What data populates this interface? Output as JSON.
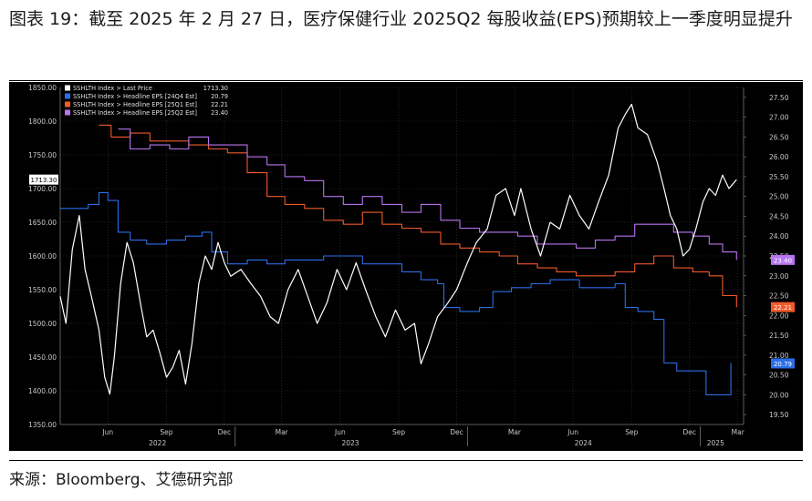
{
  "header": {
    "title": "图表 19：截至 2025 年 2 月 27 日，医疗保健行业 2025Q2 每股收益(EPS)预期较上一季度明显提升"
  },
  "footer": {
    "source": "来源：Bloomberg、艾德研究部"
  },
  "colors": {
    "background": "#000000",
    "price": "#ffffff",
    "eps_24q4": "#2b6ee8",
    "eps_25q1": "#f05a28",
    "eps_25q2": "#b874f0"
  },
  "chart_data": {
    "type": "line",
    "title": "",
    "grid": true,
    "legend": "top-left",
    "left_axis": {
      "range": [
        1350,
        1850
      ],
      "ticks": [
        "1850.00",
        "1800.00",
        "1750.00",
        "1700.00",
        "1650.00",
        "1600.00",
        "1550.00",
        "1500.00",
        "1450.00",
        "1400.00",
        "1350.00"
      ]
    },
    "right_axis": {
      "range": [
        19.25,
        27.75
      ],
      "ticks": [
        "27.50",
        "27.00",
        "26.50",
        "26.00",
        "25.50",
        "25.00",
        "24.50",
        "24.00",
        "23.50",
        "23.00",
        "22.50",
        "22.00",
        "21.50",
        "21.00",
        "20.50",
        "20.00",
        "19.50"
      ]
    },
    "x_axis": {
      "range": [
        "2022-04-01",
        "2025-03-10"
      ],
      "months": [
        {
          "label": "Jun",
          "date": "2022-06-15"
        },
        {
          "label": "Sep",
          "date": "2022-09-15"
        },
        {
          "label": "Dec",
          "date": "2022-12-15"
        },
        {
          "label": "Mar",
          "date": "2023-03-15"
        },
        {
          "label": "Jun",
          "date": "2023-06-15"
        },
        {
          "label": "Sep",
          "date": "2023-09-15"
        },
        {
          "label": "Dec",
          "date": "2023-12-15"
        },
        {
          "label": "Mar",
          "date": "2024-03-15"
        },
        {
          "label": "Jun",
          "date": "2024-06-15"
        },
        {
          "label": "Sep",
          "date": "2024-09-15"
        },
        {
          "label": "Dec",
          "date": "2024-12-15"
        },
        {
          "label": "Mar",
          "date": "2025-03-01"
        }
      ],
      "years": [
        {
          "label": "2022",
          "date": "2022-09-01"
        },
        {
          "label": "2023",
          "date": "2023-07-01"
        },
        {
          "label": "2024",
          "date": "2024-07-01"
        },
        {
          "label": "2025",
          "date": "2025-01-25"
        }
      ],
      "year_separators": [
        "2023-01-01",
        "2024-01-01",
        "2025-01-01"
      ]
    },
    "series": [
      {
        "name": "SSHLTH Index > Last Price",
        "last": "1713.30",
        "axis": "left",
        "color": "#ffffff",
        "points": [
          [
            "2022-04-01",
            1540
          ],
          [
            "2022-04-10",
            1500
          ],
          [
            "2022-04-20",
            1610
          ],
          [
            "2022-05-01",
            1660
          ],
          [
            "2022-05-10",
            1580
          ],
          [
            "2022-05-20",
            1540
          ],
          [
            "2022-06-01",
            1490
          ],
          [
            "2022-06-10",
            1420
          ],
          [
            "2022-06-18",
            1395
          ],
          [
            "2022-06-25",
            1450
          ],
          [
            "2022-07-05",
            1560
          ],
          [
            "2022-07-15",
            1620
          ],
          [
            "2022-07-25",
            1590
          ],
          [
            "2022-08-05",
            1530
          ],
          [
            "2022-08-15",
            1480
          ],
          [
            "2022-08-25",
            1490
          ],
          [
            "2022-09-05",
            1455
          ],
          [
            "2022-09-15",
            1420
          ],
          [
            "2022-09-25",
            1435
          ],
          [
            "2022-10-05",
            1460
          ],
          [
            "2022-10-15",
            1410
          ],
          [
            "2022-10-25",
            1470
          ],
          [
            "2022-11-05",
            1560
          ],
          [
            "2022-11-15",
            1600
          ],
          [
            "2022-11-25",
            1580
          ],
          [
            "2022-12-05",
            1620
          ],
          [
            "2022-12-15",
            1590
          ],
          [
            "2022-12-25",
            1570
          ],
          [
            "2023-01-10",
            1580
          ],
          [
            "2023-01-25",
            1560
          ],
          [
            "2023-02-10",
            1540
          ],
          [
            "2023-02-25",
            1510
          ],
          [
            "2023-03-10",
            1500
          ],
          [
            "2023-03-25",
            1550
          ],
          [
            "2023-04-10",
            1580
          ],
          [
            "2023-04-25",
            1540
          ],
          [
            "2023-05-10",
            1500
          ],
          [
            "2023-05-25",
            1530
          ],
          [
            "2023-06-10",
            1580
          ],
          [
            "2023-06-25",
            1550
          ],
          [
            "2023-07-10",
            1590
          ],
          [
            "2023-07-25",
            1550
          ],
          [
            "2023-08-10",
            1510
          ],
          [
            "2023-08-25",
            1480
          ],
          [
            "2023-09-10",
            1520
          ],
          [
            "2023-09-25",
            1490
          ],
          [
            "2023-10-10",
            1500
          ],
          [
            "2023-10-20",
            1440
          ],
          [
            "2023-11-01",
            1470
          ],
          [
            "2023-11-15",
            1510
          ],
          [
            "2023-12-01",
            1530
          ],
          [
            "2023-12-15",
            1550
          ],
          [
            "2024-01-01",
            1590
          ],
          [
            "2024-01-15",
            1620
          ],
          [
            "2024-02-01",
            1640
          ],
          [
            "2024-02-15",
            1690
          ],
          [
            "2024-03-01",
            1700
          ],
          [
            "2024-03-15",
            1660
          ],
          [
            "2024-03-25",
            1700
          ],
          [
            "2024-04-10",
            1640
          ],
          [
            "2024-04-25",
            1600
          ],
          [
            "2024-05-10",
            1650
          ],
          [
            "2024-05-25",
            1640
          ],
          [
            "2024-06-10",
            1690
          ],
          [
            "2024-06-25",
            1660
          ],
          [
            "2024-07-10",
            1640
          ],
          [
            "2024-07-25",
            1680
          ],
          [
            "2024-08-10",
            1720
          ],
          [
            "2024-08-25",
            1790
          ],
          [
            "2024-09-05",
            1810
          ],
          [
            "2024-09-15",
            1825
          ],
          [
            "2024-09-25",
            1790
          ],
          [
            "2024-10-10",
            1780
          ],
          [
            "2024-10-25",
            1740
          ],
          [
            "2024-11-05",
            1700
          ],
          [
            "2024-11-15",
            1660
          ],
          [
            "2024-11-25",
            1640
          ],
          [
            "2024-12-05",
            1600
          ],
          [
            "2024-12-15",
            1610
          ],
          [
            "2024-12-25",
            1640
          ],
          [
            "2025-01-05",
            1680
          ],
          [
            "2025-01-15",
            1700
          ],
          [
            "2025-01-25",
            1690
          ],
          [
            "2025-02-05",
            1720
          ],
          [
            "2025-02-15",
            1700
          ],
          [
            "2025-02-27",
            1713.3
          ]
        ]
      },
      {
        "name": "SSHLTH Index > Headline EPS [24Q4 Est]",
        "last": "20.79",
        "axis": "right",
        "color": "#2b6ee8",
        "points": [
          [
            "2022-04-01",
            24.7
          ],
          [
            "2022-05-15",
            24.8
          ],
          [
            "2022-06-01",
            25.1
          ],
          [
            "2022-06-15",
            24.9
          ],
          [
            "2022-07-01",
            24.1
          ],
          [
            "2022-07-20",
            23.9
          ],
          [
            "2022-08-15",
            23.8
          ],
          [
            "2022-09-15",
            23.9
          ],
          [
            "2022-10-15",
            24.0
          ],
          [
            "2022-11-10",
            24.1
          ],
          [
            "2022-11-25",
            23.6
          ],
          [
            "2022-12-20",
            23.3
          ],
          [
            "2023-01-20",
            23.4
          ],
          [
            "2023-02-20",
            23.3
          ],
          [
            "2023-03-20",
            23.4
          ],
          [
            "2023-04-20",
            23.4
          ],
          [
            "2023-05-20",
            23.5
          ],
          [
            "2023-06-20",
            23.5
          ],
          [
            "2023-07-20",
            23.3
          ],
          [
            "2023-08-20",
            23.3
          ],
          [
            "2023-09-20",
            23.1
          ],
          [
            "2023-10-20",
            22.9
          ],
          [
            "2023-11-15",
            22.8
          ],
          [
            "2023-11-25",
            22.2
          ],
          [
            "2023-12-20",
            22.1
          ],
          [
            "2024-01-20",
            22.2
          ],
          [
            "2024-02-10",
            22.6
          ],
          [
            "2024-03-10",
            22.7
          ],
          [
            "2024-04-10",
            22.8
          ],
          [
            "2024-05-10",
            22.9
          ],
          [
            "2024-06-10",
            22.9
          ],
          [
            "2024-06-25",
            22.7
          ],
          [
            "2024-07-20",
            22.7
          ],
          [
            "2024-08-20",
            22.8
          ],
          [
            "2024-09-05",
            22.2
          ],
          [
            "2024-09-25",
            22.1
          ],
          [
            "2024-10-20",
            21.9
          ],
          [
            "2024-11-05",
            20.8
          ],
          [
            "2024-11-25",
            20.6
          ],
          [
            "2024-12-20",
            20.6
          ],
          [
            "2025-01-10",
            20.0
          ],
          [
            "2025-02-10",
            20.0
          ],
          [
            "2025-02-18",
            20.8
          ]
        ]
      },
      {
        "name": "SSHLTH Index > Headline EPS [25Q1 Est]",
        "last": "22.21",
        "axis": "right",
        "color": "#f05a28",
        "points": [
          [
            "2022-06-01",
            26.8
          ],
          [
            "2022-06-20",
            26.5
          ],
          [
            "2022-07-20",
            26.6
          ],
          [
            "2022-08-20",
            26.4
          ],
          [
            "2022-09-20",
            26.4
          ],
          [
            "2022-10-20",
            26.3
          ],
          [
            "2022-11-20",
            26.2
          ],
          [
            "2022-12-20",
            26.1
          ],
          [
            "2023-01-20",
            25.6
          ],
          [
            "2023-02-20",
            25.0
          ],
          [
            "2023-03-20",
            24.8
          ],
          [
            "2023-04-20",
            24.7
          ],
          [
            "2023-05-20",
            24.4
          ],
          [
            "2023-06-20",
            24.3
          ],
          [
            "2023-07-20",
            24.6
          ],
          [
            "2023-08-20",
            24.3
          ],
          [
            "2023-09-20",
            24.2
          ],
          [
            "2023-10-20",
            24.1
          ],
          [
            "2023-11-20",
            23.8
          ],
          [
            "2023-12-20",
            23.7
          ],
          [
            "2024-01-20",
            23.6
          ],
          [
            "2024-02-20",
            23.5
          ],
          [
            "2024-03-20",
            23.3
          ],
          [
            "2024-04-20",
            23.2
          ],
          [
            "2024-05-20",
            23.1
          ],
          [
            "2024-06-20",
            23.0
          ],
          [
            "2024-07-20",
            23.0
          ],
          [
            "2024-08-20",
            23.1
          ],
          [
            "2024-09-20",
            23.3
          ],
          [
            "2024-10-20",
            23.5
          ],
          [
            "2024-11-20",
            23.2
          ],
          [
            "2024-12-20",
            23.1
          ],
          [
            "2025-01-15",
            23.0
          ],
          [
            "2025-02-05",
            22.5
          ],
          [
            "2025-02-27",
            22.21
          ]
        ]
      },
      {
        "name": "SSHLTH Index > Headline EPS [25Q2 Est]",
        "last": "23.40",
        "axis": "right",
        "color": "#b874f0",
        "points": [
          [
            "2022-07-01",
            26.7
          ],
          [
            "2022-07-20",
            26.2
          ],
          [
            "2022-08-20",
            26.3
          ],
          [
            "2022-09-20",
            26.2
          ],
          [
            "2022-10-20",
            26.5
          ],
          [
            "2022-11-20",
            26.3
          ],
          [
            "2022-12-20",
            26.3
          ],
          [
            "2023-01-20",
            26.0
          ],
          [
            "2023-02-20",
            25.8
          ],
          [
            "2023-03-20",
            25.5
          ],
          [
            "2023-04-20",
            25.4
          ],
          [
            "2023-05-20",
            25.0
          ],
          [
            "2023-06-20",
            24.8
          ],
          [
            "2023-07-20",
            25.0
          ],
          [
            "2023-08-20",
            24.8
          ],
          [
            "2023-09-20",
            24.6
          ],
          [
            "2023-10-20",
            24.8
          ],
          [
            "2023-11-20",
            24.4
          ],
          [
            "2023-12-20",
            24.2
          ],
          [
            "2024-01-20",
            24.1
          ],
          [
            "2024-02-20",
            24.1
          ],
          [
            "2024-03-20",
            24.0
          ],
          [
            "2024-04-20",
            23.8
          ],
          [
            "2024-05-20",
            23.8
          ],
          [
            "2024-06-20",
            23.7
          ],
          [
            "2024-07-20",
            23.9
          ],
          [
            "2024-08-20",
            24.0
          ],
          [
            "2024-09-20",
            24.3
          ],
          [
            "2024-10-20",
            24.3
          ],
          [
            "2024-11-20",
            24.1
          ],
          [
            "2024-12-20",
            24.0
          ],
          [
            "2025-01-15",
            23.8
          ],
          [
            "2025-02-05",
            23.6
          ],
          [
            "2025-02-27",
            23.4
          ]
        ]
      }
    ]
  }
}
